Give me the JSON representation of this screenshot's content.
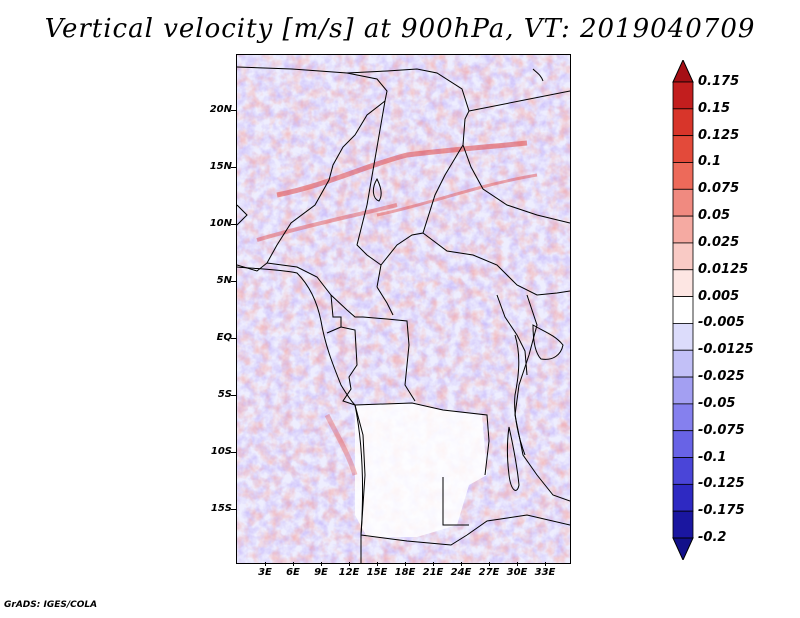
{
  "title": "Vertical velocity [m/s] at 900hPa, VT: 2019040709",
  "footer": "GrADS: IGES/COLA",
  "map": {
    "lat_labels": [
      "20N",
      "15N",
      "10N",
      "5N",
      "EQ",
      "5S",
      "10S",
      "15S"
    ],
    "lon_labels": [
      "3E",
      "6E",
      "9E",
      "12E",
      "15E",
      "18E",
      "21E",
      "24E",
      "27E",
      "30E",
      "33E"
    ],
    "field_colors": {
      "positive": "#e8605a",
      "weak_positive": "#f7c8c4",
      "negative": "#6f6ff0",
      "weak_negative": "#d2d0fb",
      "neutral": "#ffffff"
    }
  },
  "colorbar": {
    "labels": [
      "0.175",
      "0.15",
      "0.125",
      "0.1",
      "0.075",
      "0.05",
      "0.025",
      "0.0125",
      "0.005",
      "-0.005",
      "-0.0125",
      "-0.025",
      "-0.05",
      "-0.075",
      "-0.1",
      "-0.125",
      "-0.175",
      "-0.2"
    ],
    "colors": [
      "#a50f15",
      "#c21e1e",
      "#d8352a",
      "#e34a3a",
      "#ed6a5a",
      "#f08a80",
      "#f5aaa2",
      "#f9cac5",
      "#fde6e3",
      "#ffffff",
      "#dcdcfb",
      "#c2c0f7",
      "#a39ff2",
      "#8580ee",
      "#6863e6",
      "#4a45d8",
      "#2e29c2",
      "#1a16a0",
      "#12108a"
    ]
  }
}
